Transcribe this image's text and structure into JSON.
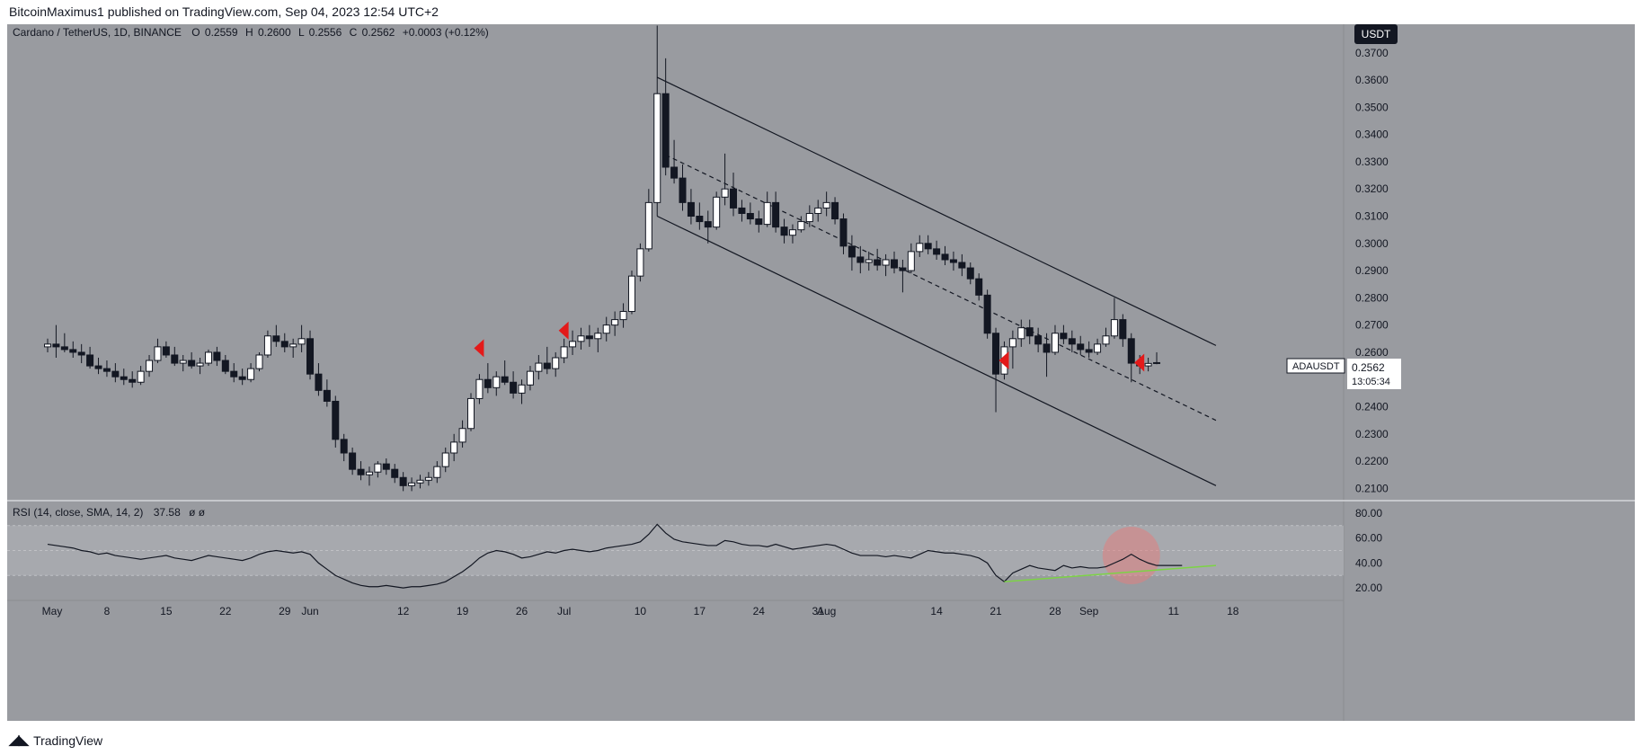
{
  "header": {
    "publisher_text": "BitcoinMaximus1 published on TradingView.com, Sep 04, 2023 12:54 UTC+2"
  },
  "footer": {
    "brand": "TradingView"
  },
  "colors": {
    "chart_bg": "#999ba0",
    "up_candle": "#ffffff",
    "down_candle": "#131722",
    "wick": "#131722",
    "marker": "#e31a1a",
    "rsi_line": "#131722",
    "rsi_trend": "#7cd444",
    "rsi_highlight": "#e08080"
  },
  "chart_data": [
    {
      "type": "candlestick",
      "legend": {
        "symbol": "Cardano / TetherUS, 1D, BINANCE",
        "o_label": "O",
        "o_value": "0.2559",
        "h_label": "H",
        "h_value": "0.2600",
        "l_label": "L",
        "l_value": "0.2556",
        "c_label": "C",
        "c_value": "0.2562",
        "change": "+0.0003 (+0.12%)"
      },
      "currency_badge": "USDT",
      "price_label": {
        "symbol": "ADAUSDT",
        "price": "0.2562",
        "countdown": "13:05:34"
      },
      "ylim": [
        0.2055,
        0.3805
      ],
      "y_ticks": [
        "0.3700",
        "0.3600",
        "0.3500",
        "0.3400",
        "0.3300",
        "0.3200",
        "0.3100",
        "0.3000",
        "0.2900",
        "0.2800",
        "0.2700",
        "0.2600",
        "0.2500",
        "0.2400",
        "0.2300",
        "0.2200",
        "0.2100"
      ],
      "x_ticks": [
        "May",
        "8",
        "15",
        "22",
        "29",
        "Jun",
        "12",
        "19",
        "26",
        "Jul",
        "10",
        "17",
        "24",
        "31",
        "Aug",
        "14",
        "21",
        "28",
        "Sep",
        "11",
        "18"
      ],
      "x_tick_days": [
        0,
        7,
        14,
        21,
        28,
        31,
        42,
        49,
        56,
        61,
        70,
        77,
        84,
        91,
        92,
        105,
        112,
        119,
        123,
        133,
        140
      ],
      "candles_start_date": "May 01 2023",
      "ohlc": [
        [
          0.262,
          0.265,
          0.26,
          0.263
        ],
        [
          0.263,
          0.27,
          0.258,
          0.262
        ],
        [
          0.262,
          0.267,
          0.26,
          0.261
        ],
        [
          0.261,
          0.264,
          0.258,
          0.26
        ],
        [
          0.26,
          0.263,
          0.256,
          0.259
        ],
        [
          0.259,
          0.262,
          0.254,
          0.255
        ],
        [
          0.255,
          0.258,
          0.252,
          0.254
        ],
        [
          0.254,
          0.257,
          0.251,
          0.253
        ],
        [
          0.253,
          0.256,
          0.249,
          0.251
        ],
        [
          0.251,
          0.254,
          0.248,
          0.25
        ],
        [
          0.25,
          0.253,
          0.247,
          0.249
        ],
        [
          0.249,
          0.255,
          0.248,
          0.253
        ],
        [
          0.253,
          0.259,
          0.251,
          0.257
        ],
        [
          0.257,
          0.265,
          0.256,
          0.262
        ],
        [
          0.262,
          0.264,
          0.258,
          0.259
        ],
        [
          0.259,
          0.262,
          0.255,
          0.256
        ],
        [
          0.256,
          0.259,
          0.253,
          0.257
        ],
        [
          0.257,
          0.26,
          0.254,
          0.255
        ],
        [
          0.255,
          0.258,
          0.252,
          0.256
        ],
        [
          0.256,
          0.261,
          0.255,
          0.26
        ],
        [
          0.26,
          0.262,
          0.255,
          0.257
        ],
        [
          0.257,
          0.259,
          0.252,
          0.253
        ],
        [
          0.253,
          0.256,
          0.249,
          0.251
        ],
        [
          0.251,
          0.254,
          0.248,
          0.25
        ],
        [
          0.25,
          0.256,
          0.249,
          0.254
        ],
        [
          0.254,
          0.26,
          0.253,
          0.259
        ],
        [
          0.259,
          0.268,
          0.258,
          0.266
        ],
        [
          0.266,
          0.27,
          0.262,
          0.264
        ],
        [
          0.264,
          0.267,
          0.26,
          0.262
        ],
        [
          0.262,
          0.265,
          0.258,
          0.263
        ],
        [
          0.263,
          0.27,
          0.26,
          0.265
        ],
        [
          0.265,
          0.268,
          0.25,
          0.252
        ],
        [
          0.252,
          0.256,
          0.244,
          0.246
        ],
        [
          0.246,
          0.25,
          0.24,
          0.242
        ],
        [
          0.242,
          0.244,
          0.225,
          0.228
        ],
        [
          0.228,
          0.23,
          0.22,
          0.223
        ],
        [
          0.223,
          0.225,
          0.215,
          0.217
        ],
        [
          0.217,
          0.22,
          0.213,
          0.215
        ],
        [
          0.215,
          0.218,
          0.211,
          0.216
        ],
        [
          0.216,
          0.22,
          0.214,
          0.219
        ],
        [
          0.219,
          0.221,
          0.215,
          0.217
        ],
        [
          0.217,
          0.219,
          0.212,
          0.214
        ],
        [
          0.214,
          0.216,
          0.209,
          0.211
        ],
        [
          0.211,
          0.214,
          0.209,
          0.212
        ],
        [
          0.212,
          0.215,
          0.21,
          0.213
        ],
        [
          0.213,
          0.216,
          0.211,
          0.214
        ],
        [
          0.214,
          0.22,
          0.212,
          0.218
        ],
        [
          0.218,
          0.225,
          0.216,
          0.223
        ],
        [
          0.223,
          0.23,
          0.22,
          0.227
        ],
        [
          0.227,
          0.235,
          0.225,
          0.232
        ],
        [
          0.232,
          0.245,
          0.231,
          0.243
        ],
        [
          0.243,
          0.252,
          0.241,
          0.25
        ],
        [
          0.25,
          0.256,
          0.245,
          0.247
        ],
        [
          0.247,
          0.253,
          0.244,
          0.251
        ],
        [
          0.251,
          0.257,
          0.248,
          0.249
        ],
        [
          0.249,
          0.253,
          0.243,
          0.245
        ],
        [
          0.245,
          0.25,
          0.241,
          0.248
        ],
        [
          0.248,
          0.255,
          0.246,
          0.253
        ],
        [
          0.253,
          0.259,
          0.25,
          0.256
        ],
        [
          0.256,
          0.262,
          0.252,
          0.254
        ],
        [
          0.254,
          0.26,
          0.251,
          0.258
        ],
        [
          0.258,
          0.265,
          0.256,
          0.262
        ],
        [
          0.262,
          0.268,
          0.259,
          0.264
        ],
        [
          0.264,
          0.269,
          0.261,
          0.266
        ],
        [
          0.266,
          0.27,
          0.262,
          0.265
        ],
        [
          0.265,
          0.269,
          0.26,
          0.267
        ],
        [
          0.267,
          0.273,
          0.264,
          0.27
        ],
        [
          0.27,
          0.275,
          0.266,
          0.272
        ],
        [
          0.272,
          0.278,
          0.269,
          0.275
        ],
        [
          0.275,
          0.29,
          0.274,
          0.288
        ],
        [
          0.288,
          0.3,
          0.286,
          0.298
        ],
        [
          0.298,
          0.32,
          0.297,
          0.315
        ],
        [
          0.315,
          0.38,
          0.31,
          0.355
        ],
        [
          0.355,
          0.368,
          0.325,
          0.328
        ],
        [
          0.328,
          0.338,
          0.322,
          0.324
        ],
        [
          0.324,
          0.329,
          0.312,
          0.315
        ],
        [
          0.315,
          0.32,
          0.307,
          0.31
        ],
        [
          0.31,
          0.315,
          0.305,
          0.308
        ],
        [
          0.308,
          0.312,
          0.3,
          0.306
        ],
        [
          0.306,
          0.319,
          0.305,
          0.317
        ],
        [
          0.317,
          0.333,
          0.314,
          0.32
        ],
        [
          0.32,
          0.326,
          0.31,
          0.313
        ],
        [
          0.313,
          0.316,
          0.308,
          0.311
        ],
        [
          0.311,
          0.315,
          0.307,
          0.309
        ],
        [
          0.309,
          0.312,
          0.304,
          0.307
        ],
        [
          0.307,
          0.319,
          0.306,
          0.315
        ],
        [
          0.315,
          0.319,
          0.304,
          0.306
        ],
        [
          0.306,
          0.309,
          0.3,
          0.303
        ],
        [
          0.303,
          0.307,
          0.3,
          0.305
        ],
        [
          0.305,
          0.31,
          0.304,
          0.308
        ],
        [
          0.308,
          0.314,
          0.306,
          0.311
        ],
        [
          0.311,
          0.316,
          0.308,
          0.313
        ],
        [
          0.313,
          0.319,
          0.31,
          0.315
        ],
        [
          0.315,
          0.317,
          0.307,
          0.309
        ],
        [
          0.309,
          0.311,
          0.296,
          0.299
        ],
        [
          0.299,
          0.303,
          0.29,
          0.295
        ],
        [
          0.295,
          0.299,
          0.289,
          0.293
        ],
        [
          0.293,
          0.297,
          0.29,
          0.294
        ],
        [
          0.294,
          0.298,
          0.29,
          0.292
        ],
        [
          0.292,
          0.296,
          0.288,
          0.294
        ],
        [
          0.294,
          0.297,
          0.289,
          0.291
        ],
        [
          0.291,
          0.294,
          0.282,
          0.29
        ],
        [
          0.29,
          0.3,
          0.289,
          0.297
        ],
        [
          0.297,
          0.303,
          0.295,
          0.3
        ],
        [
          0.3,
          0.303,
          0.296,
          0.298
        ],
        [
          0.298,
          0.301,
          0.294,
          0.296
        ],
        [
          0.296,
          0.299,
          0.292,
          0.294
        ],
        [
          0.294,
          0.297,
          0.29,
          0.293
        ],
        [
          0.293,
          0.296,
          0.288,
          0.291
        ],
        [
          0.291,
          0.293,
          0.285,
          0.287
        ],
        [
          0.287,
          0.289,
          0.279,
          0.281
        ],
        [
          0.281,
          0.283,
          0.265,
          0.267
        ],
        [
          0.267,
          0.269,
          0.238,
          0.252
        ],
        [
          0.252,
          0.264,
          0.25,
          0.262
        ],
        [
          0.262,
          0.268,
          0.254,
          0.265
        ],
        [
          0.265,
          0.272,
          0.262,
          0.269
        ],
        [
          0.269,
          0.272,
          0.263,
          0.266
        ],
        [
          0.266,
          0.269,
          0.26,
          0.263
        ],
        [
          0.263,
          0.267,
          0.251,
          0.26
        ],
        [
          0.26,
          0.27,
          0.259,
          0.267
        ],
        [
          0.267,
          0.27,
          0.263,
          0.265
        ],
        [
          0.265,
          0.268,
          0.26,
          0.263
        ],
        [
          0.263,
          0.266,
          0.259,
          0.261
        ],
        [
          0.261,
          0.264,
          0.258,
          0.26
        ],
        [
          0.26,
          0.265,
          0.259,
          0.263
        ],
        [
          0.263,
          0.269,
          0.262,
          0.266
        ],
        [
          0.266,
          0.28,
          0.265,
          0.272
        ],
        [
          0.272,
          0.274,
          0.262,
          0.265
        ],
        [
          0.265,
          0.267,
          0.249,
          0.256
        ],
        [
          0.256,
          0.259,
          0.252,
          0.255
        ],
        [
          0.255,
          0.258,
          0.253,
          0.2559
        ],
        [
          0.2559,
          0.26,
          0.2556,
          0.2562
        ]
      ],
      "channel": {
        "upper": [
          [
            72,
            0.361
          ],
          [
            138,
            0.2625
          ]
        ],
        "middle": [
          [
            73,
            0.3325
          ],
          [
            138,
            0.235
          ]
        ],
        "lower": [
          [
            72,
            0.31
          ],
          [
            138,
            0.211
          ]
        ]
      },
      "markers": [
        {
          "day": 51,
          "price": 0.2615
        },
        {
          "day": 61,
          "price": 0.268
        },
        {
          "day": 113,
          "price": 0.257
        },
        {
          "day": 129,
          "price": 0.2562
        }
      ]
    },
    {
      "type": "line",
      "legend": {
        "label": "RSI (14, close, SMA, 14, 2)",
        "value": "37.58",
        "extra": "ø ø"
      },
      "ylim": [
        10,
        90
      ],
      "y_ticks": [
        "80.00",
        "60.00",
        "40.00",
        "20.00"
      ],
      "band": [
        30,
        70
      ],
      "midline": 50,
      "rsi": [
        55,
        54,
        53,
        52,
        50,
        49,
        47,
        48,
        46,
        45,
        44,
        43,
        44,
        45,
        46,
        44,
        43,
        42,
        44,
        46,
        45,
        44,
        43,
        42,
        44,
        47,
        49,
        50,
        49,
        48,
        49,
        47,
        40,
        35,
        30,
        27,
        24,
        22,
        21,
        21,
        22,
        21,
        20,
        21,
        21,
        22,
        23,
        25,
        29,
        33,
        38,
        44,
        48,
        50,
        49,
        47,
        44,
        45,
        47,
        49,
        48,
        50,
        51,
        50,
        49,
        50,
        52,
        53,
        54,
        55,
        57,
        63,
        71,
        64,
        59,
        57,
        56,
        55,
        54,
        54,
        58,
        57,
        55,
        54,
        54,
        53,
        55,
        53,
        51,
        52,
        53,
        54,
        55,
        54,
        51,
        48,
        46,
        46,
        46,
        45,
        46,
        45,
        44,
        47,
        50,
        49,
        48,
        48,
        47,
        46,
        44,
        40,
        30,
        25,
        32,
        35,
        38,
        36,
        35,
        34,
        38,
        36,
        37,
        36,
        36,
        37,
        40,
        43,
        47,
        43,
        40,
        38,
        38,
        38,
        38
      ],
      "trendline": [
        [
          113,
          25
        ],
        [
          138,
          38
        ]
      ],
      "highlight": {
        "day": 128,
        "value": 46
      }
    }
  ]
}
